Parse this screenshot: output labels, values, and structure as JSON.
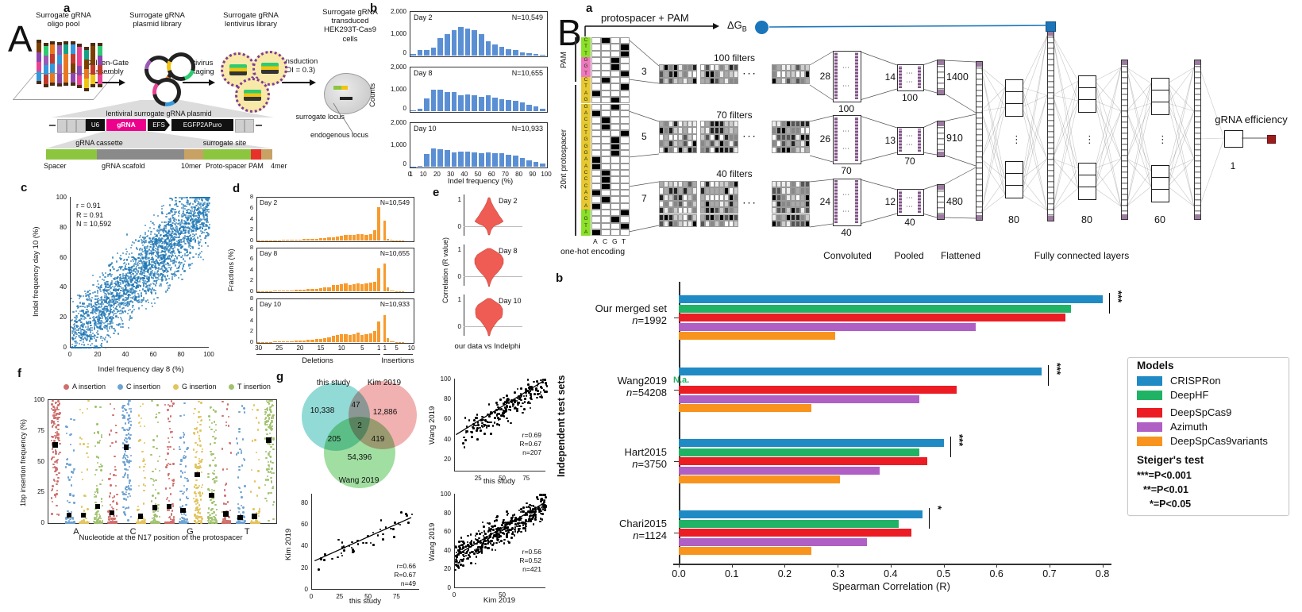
{
  "panelA": {
    "label": "A",
    "a": {
      "label": "a",
      "stages": [
        "Surrogate gRNA\noligo pool",
        "Surrogate gRNA\nplasmid library",
        "Surrogate gRNA\nlentivirus library",
        "Surrogate gRNA\ntransduced\nHEK293T-Cas9\ncells"
      ],
      "steps": [
        "Golden-Gate\nAssembly",
        "Lentivirus\npackaging",
        "Transduction\n(MOI = 0.3)"
      ],
      "plasmid_label": "lentiviral surrogate gRNA plasmid",
      "plasmid_boxes": [
        "U6",
        "gRNA",
        "EFS",
        "EGFP2APuro"
      ],
      "cassette_label": "gRNA cassette",
      "surrogate_site_label": "surrogate site",
      "segment_labels": [
        "Spacer",
        "gRNA scafold",
        "10mer",
        "Proto-spacer",
        "PAM",
        "4mer"
      ],
      "locus_labels": [
        "surrogate locus",
        "endogenous locus"
      ]
    },
    "b_label": "b",
    "c_label": "c",
    "d_label": "d",
    "e_label": "e",
    "f_label": "f",
    "g_label": "g"
  },
  "panelB": {
    "label": "B",
    "a_label": "a",
    "b_label": "b",
    "arch": {
      "input_label": "protospacer + PAM",
      "dg_label": "ΔG",
      "dg_sub": "B",
      "sequence_bottom_to_top": "ATGTACACCCAAGGGTCCAGGATCTGGTTC",
      "seq_segments_bottom_to_top": [
        {
          "len": 4,
          "color": "#8ce02a"
        },
        {
          "len": 20,
          "color": "#e8c832"
        },
        {
          "len": 3,
          "color": "#f078c0"
        },
        {
          "len": 3,
          "color": "#8ce02a"
        }
      ],
      "bases": [
        "A",
        "C",
        "G",
        "T"
      ],
      "onehot_label": "one-hot encoding",
      "pam_label": "PAM",
      "protospacer_label": "20nt protospacer",
      "branches": [
        {
          "kernel": "3",
          "filters": "100 filters",
          "conv": "28",
          "conv_n": "100",
          "pool": "14",
          "pool_n": "100",
          "flat": "1400"
        },
        {
          "kernel": "5",
          "filters": "70 filters",
          "conv": "26",
          "conv_n": "70",
          "pool": "13",
          "pool_n": "70",
          "flat": "910"
        },
        {
          "kernel": "7",
          "filters": "40 filters",
          "conv": "24",
          "conv_n": "40",
          "pool": "12",
          "pool_n": "40",
          "flat": "480"
        }
      ],
      "stage_labels": [
        "Convoluted",
        "Pooled",
        "Flattened",
        "Fully connected layers"
      ],
      "fc_sizes": [
        "80",
        "80",
        "60"
      ],
      "output_size": "1",
      "output_label": "gRNA efficiency"
    }
  },
  "chart_data": [
    {
      "id": "indel_histograms",
      "type": "bar",
      "panel": "A.b",
      "ylabel": "Counts",
      "xlabel": "Indel frequency (%)",
      "ylim": [
        0,
        2000
      ],
      "yticks": [
        "2,000",
        "1,000",
        "0"
      ],
      "xticks": [
        "0",
        "1",
        "10",
        "20",
        "30",
        "40",
        "50",
        "60",
        "70",
        "80",
        "90",
        "100"
      ],
      "bin_width": 5,
      "color": "#5b8fd4",
      "series": [
        {
          "name": "Day 2",
          "n_label": "N=10,549",
          "values": [
            60,
            250,
            260,
            350,
            780,
            950,
            1150,
            1290,
            1200,
            1150,
            950,
            650,
            500,
            400,
            300,
            250,
            160,
            110,
            80,
            50
          ]
        },
        {
          "name": "Day 8",
          "n_label": "N=10,655",
          "values": [
            30,
            110,
            580,
            950,
            950,
            870,
            850,
            700,
            750,
            700,
            650,
            700,
            600,
            550,
            500,
            450,
            400,
            300,
            210,
            120
          ]
        },
        {
          "name": "Day 10",
          "n_label": "N=10,933",
          "values": [
            10,
            30,
            580,
            830,
            800,
            760,
            650,
            680,
            680,
            650,
            600,
            650,
            600,
            600,
            550,
            500,
            400,
            300,
            210,
            150
          ]
        }
      ]
    },
    {
      "id": "day8_vs_day10_scatter",
      "type": "scatter",
      "panel": "A.c",
      "stats": [
        "r = 0.91",
        "R = 0.91",
        "N = 10,592"
      ],
      "xlabel": "Indel frequency day 8 (%)",
      "ylabel": "Indel frequency day 10 (%)",
      "xlim": [
        0,
        100
      ],
      "ylim": [
        0,
        100
      ],
      "ticks": [
        0,
        20,
        40,
        60,
        80,
        100
      ],
      "n_points": 10592,
      "color": "#2878b8"
    },
    {
      "id": "indel_size_fractions",
      "type": "bar",
      "panel": "A.d",
      "ylabel": "Fractions (%)",
      "ylim": [
        0,
        8
      ],
      "yticks": [
        8,
        6,
        4,
        2,
        0
      ],
      "deletion_ticks": [
        30,
        25,
        20,
        15,
        10,
        5,
        1
      ],
      "insertion_ticks": [
        1,
        5,
        10
      ],
      "group_labels": [
        "Deletions",
        "Insertions"
      ],
      "color": "#f79b2e",
      "series": [
        {
          "name": "Day 2",
          "n_label": "N=10,549",
          "deletions": [
            0.05,
            0.05,
            0.05,
            0.06,
            0.06,
            0.07,
            0.08,
            0.1,
            0.12,
            0.15,
            0.2,
            0.22,
            0.25,
            0.3,
            0.35,
            0.4,
            0.5,
            0.55,
            0.65,
            0.75,
            0.85,
            0.95,
            1.05,
            1.0,
            1.1,
            1.1,
            1.05,
            1.15,
            1.9,
            6.1
          ],
          "insertions": [
            3.6,
            0.35,
            0.12,
            0.06,
            0.04,
            0.03,
            0.02,
            0.01,
            0.01,
            0.0
          ]
        },
        {
          "name": "Day 8",
          "n_label": "N=10,655",
          "deletions": [
            0.05,
            0.05,
            0.06,
            0.07,
            0.08,
            0.1,
            0.12,
            0.15,
            0.2,
            0.25,
            0.3,
            0.35,
            0.4,
            0.45,
            0.5,
            0.6,
            0.7,
            0.8,
            1.1,
            1.2,
            1.3,
            1.4,
            1.2,
            1.3,
            1.4,
            1.3,
            1.5,
            1.6,
            1.8,
            4.2
          ],
          "insertions": [
            5.1,
            0.7,
            0.15,
            0.08,
            0.05,
            0.03,
            0.02,
            0.01,
            0.01,
            0.0
          ]
        },
        {
          "name": "Day 10",
          "n_label": "N=10,933",
          "deletions": [
            0.05,
            0.05,
            0.06,
            0.07,
            0.08,
            0.1,
            0.12,
            0.15,
            0.2,
            0.25,
            0.3,
            0.35,
            0.4,
            0.45,
            0.55,
            0.65,
            0.75,
            0.9,
            1.2,
            1.3,
            1.4,
            1.5,
            1.3,
            1.4,
            1.7,
            1.3,
            1.5,
            1.6,
            2.0,
            3.8
          ],
          "insertions": [
            5.0,
            0.7,
            0.15,
            0.08,
            0.05,
            0.03,
            0.02,
            0.01,
            0.01,
            0.0
          ]
        }
      ]
    },
    {
      "id": "indelphi_correlation_violins",
      "type": "violin",
      "panel": "A.e",
      "ylabel": "Correlation (R value)",
      "yticks": [
        "1",
        "0"
      ],
      "xlabel": "our data vs Indelphi",
      "days": [
        "Day 2",
        "Day 8",
        "Day 10"
      ],
      "color": "#ee5c54"
    },
    {
      "id": "insertion_by_n17",
      "type": "strip",
      "panel": "A.f",
      "ylabel": "1bp insertion frequency (%)",
      "xlabel": "Nucleotide at the N17 position of the protospacer",
      "yticks": [
        100,
        75,
        50,
        25,
        0
      ],
      "categories": [
        "A",
        "C",
        "G",
        "T"
      ],
      "legend": [
        "A insertion",
        "C insertion",
        "G insertion",
        "T insertion"
      ],
      "colors": [
        "#cf6f6c",
        "#6fa3d2",
        "#e2c45f",
        "#a1c16e"
      ],
      "means": {
        "A": [
          63,
          6,
          6,
          13
        ],
        "C": [
          8,
          61,
          5,
          12
        ],
        "G": [
          13,
          10,
          39,
          22
        ],
        "T": [
          7,
          4,
          5,
          67
        ]
      }
    },
    {
      "id": "venn",
      "type": "venn",
      "panel": "A.g",
      "sets": [
        "this study",
        "Kim 2019",
        "Wang 2019"
      ],
      "counts": {
        "this_only": "10,338",
        "this_kim": "47",
        "kim_only": "12,886",
        "this_wang": "205",
        "all": "2",
        "kim_wang": "419",
        "wang_only": "54,396"
      },
      "colors": [
        "#7fd4cf",
        "#f0a3a3",
        "#90d890"
      ]
    },
    {
      "id": "study_scatters",
      "type": "scatter",
      "panel": "A.g",
      "plots": [
        {
          "x": "this study",
          "y": "Kim 2019",
          "stats": [
            "r=0.66",
            "R=0.67",
            "n=49"
          ],
          "n": 49,
          "yticks": [
            80,
            60,
            40,
            20,
            0
          ],
          "xticks": [
            0,
            25,
            50,
            75
          ]
        },
        {
          "x": "this study",
          "y": "Wang 2019",
          "stats": [
            "r=0.69",
            "R=0.67",
            "n=207"
          ],
          "n": 207,
          "yticks": [
            100,
            80,
            60,
            40,
            20
          ],
          "xticks": [
            25,
            50,
            75
          ]
        },
        {
          "x": "Kim 2019",
          "y": "Wang 2019",
          "stats": [
            "r=0.56",
            "R=0.52",
            "n=421"
          ],
          "n": 421,
          "yticks": [
            100,
            80,
            60,
            40,
            20,
            0
          ],
          "xticks": [
            0,
            50
          ]
        }
      ]
    },
    {
      "id": "spearman_bars",
      "type": "bar",
      "orientation": "horizontal",
      "panel": "B.b",
      "xlabel": "Spearman Correlation (R)",
      "ylabel": "Independent test sets",
      "xlim": [
        0,
        0.85
      ],
      "xticks": [
        "0.0",
        "0.1",
        "0.2",
        "0.3",
        "0.4",
        "0.5",
        "0.6",
        "0.7",
        "0.8"
      ],
      "legend_title": "Models",
      "models": [
        "CRISPRon",
        "DeepHF",
        "DeepSpCas9",
        "Azimuth",
        "DeepSpCas9variants"
      ],
      "colors": [
        "#1f8ac4",
        "#21b365",
        "#ec1c24",
        "#b05fc4",
        "#f8941e"
      ],
      "na_text": "N.a.",
      "na_color": "#21b365",
      "steiger_title": "Steiger's test",
      "steiger_lines": [
        "***=P<0.001",
        "**=P<0.01",
        "*=P<0.05"
      ],
      "groups": [
        {
          "label": "Our merged set",
          "n_label": "n=1992",
          "values": [
            0.8,
            0.74,
            0.73,
            0.56,
            0.295
          ],
          "sig": "***"
        },
        {
          "label": "Wang2019",
          "n_label": "n=54208",
          "values": [
            0.685,
            null,
            0.525,
            0.455,
            0.25
          ],
          "sig": "***"
        },
        {
          "label": "Hart2015",
          "n_label": "n=3750",
          "values": [
            0.5,
            0.455,
            0.47,
            0.38,
            0.305
          ],
          "sig": "***"
        },
        {
          "label": "Chari2015",
          "n_label": "n=1124",
          "values": [
            0.46,
            0.415,
            0.44,
            0.355,
            0.25
          ],
          "sig": "*"
        }
      ]
    }
  ]
}
